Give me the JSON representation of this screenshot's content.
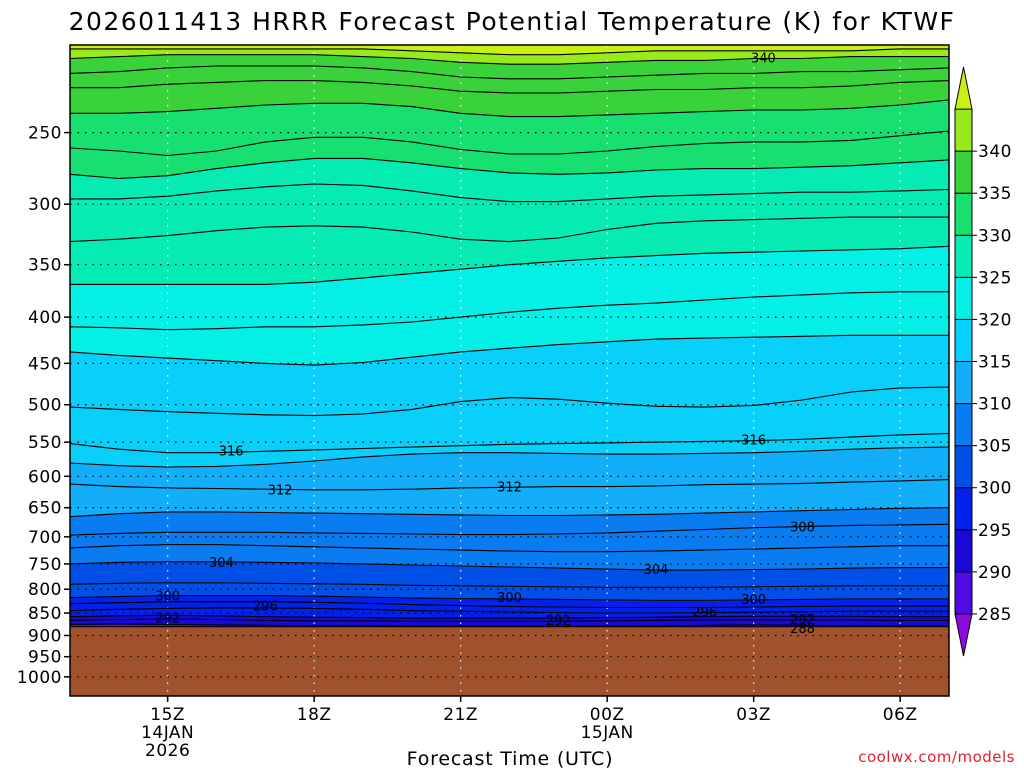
{
  "title": "2026011413 HRRR Forecast Potential Temperature (K) for KTWF",
  "credit": "coolwx.com/models",
  "chart_data": {
    "type": "heatmap",
    "title": "2026011413 HRRR Forecast Potential Temperature (K) for KTWF",
    "xlabel": "Forecast Time (UTC)",
    "ylabel": "",
    "x_range_hours_after_13Z": [
      0,
      18
    ],
    "x_ticks": [
      {
        "label": "15Z",
        "sub": [
          "14JAN",
          "2026"
        ],
        "hour": 2
      },
      {
        "label": "18Z",
        "sub": [],
        "hour": 5
      },
      {
        "label": "21Z",
        "sub": [],
        "hour": 8
      },
      {
        "label": "00Z",
        "sub": [
          "15JAN"
        ],
        "hour": 11
      },
      {
        "label": "03Z",
        "sub": [],
        "hour": 14
      },
      {
        "label": "06Z",
        "sub": [],
        "hour": 17
      }
    ],
    "y_ticks": [
      "250",
      "300",
      "350",
      "400",
      "450",
      "500",
      "550",
      "600",
      "650",
      "700",
      "750",
      "800",
      "850",
      "900",
      "950",
      "1000"
    ],
    "y_tick_values": [
      250,
      300,
      350,
      400,
      450,
      500,
      550,
      600,
      650,
      700,
      750,
      800,
      850,
      900,
      950,
      1000
    ],
    "y_range": [
      200,
      1050
    ],
    "y_scale": "log",
    "colorbar_levels": [
      "285",
      "290",
      "295",
      "300",
      "305",
      "310",
      "315",
      "320",
      "325",
      "330",
      "335",
      "340"
    ],
    "colorbar_values": [
      285,
      290,
      295,
      300,
      305,
      310,
      315,
      320,
      325,
      330,
      335,
      340
    ],
    "fill_colors": [
      "#8a0ae0",
      "#4f0ae6",
      "#1a08d8",
      "#0022ea",
      "#0050e8",
      "#0a7cf2",
      "#12aefa",
      "#08d0fa",
      "#04f0e6",
      "#06eab4",
      "#18e070",
      "#3ad23a",
      "#98ea1e",
      "#c8f012"
    ],
    "ground_color": "#a0522d",
    "ground_top_hpa": 880,
    "contour_interval_K": 2,
    "contour_labels": [
      {
        "text": "340",
        "hour": 14.2,
        "hpa": 207
      },
      {
        "text": "316",
        "hour": 3.3,
        "hpa": 563
      },
      {
        "text": "316",
        "hour": 14.0,
        "hpa": 548
      },
      {
        "text": "312",
        "hour": 4.3,
        "hpa": 622
      },
      {
        "text": "312",
        "hour": 9.0,
        "hpa": 617
      },
      {
        "text": "308",
        "hour": 15.0,
        "hpa": 684
      },
      {
        "text": "304",
        "hour": 3.1,
        "hpa": 748
      },
      {
        "text": "304",
        "hour": 12.0,
        "hpa": 762
      },
      {
        "text": "300",
        "hour": 2.0,
        "hpa": 815
      },
      {
        "text": "300",
        "hour": 9.0,
        "hpa": 818
      },
      {
        "text": "300",
        "hour": 14.0,
        "hpa": 822
      },
      {
        "text": "296",
        "hour": 4.0,
        "hpa": 836
      },
      {
        "text": "296",
        "hour": 13.0,
        "hpa": 849
      },
      {
        "text": "292",
        "hour": 2.0,
        "hpa": 862
      },
      {
        "text": "292",
        "hour": 10.0,
        "hpa": 867
      },
      {
        "text": "292",
        "hour": 15.0,
        "hpa": 865
      },
      {
        "text": "288",
        "hour": 15.0,
        "hpa": 885
      }
    ],
    "isentropes": [
      {
        "theta": 288,
        "p": [
          880,
          880,
          880,
          880,
          880,
          880,
          880,
          880,
          880,
          880,
          880,
          880,
          880,
          880,
          880,
          880,
          880,
          880,
          880
        ]
      },
      {
        "theta": 290,
        "p": [
          875,
          874,
          875,
          876,
          877,
          878,
          878,
          879,
          879,
          879,
          879,
          879,
          879,
          877,
          876,
          877,
          878,
          878,
          878
        ]
      },
      {
        "theta": 292,
        "p": [
          866,
          864,
          863,
          864,
          866,
          867,
          867,
          868,
          868,
          868,
          868,
          867,
          866,
          865,
          865,
          865,
          865,
          866,
          866
        ]
      },
      {
        "theta": 294,
        "p": [
          858,
          856,
          855,
          856,
          858,
          859,
          860,
          861,
          861,
          861,
          861,
          860,
          859,
          858,
          857,
          857,
          857,
          858,
          858
        ]
      },
      {
        "theta": 296,
        "p": [
          845,
          842,
          840,
          839,
          839,
          840,
          842,
          845,
          846,
          848,
          849,
          850,
          850,
          849,
          848,
          847,
          846,
          846,
          846
        ]
      },
      {
        "theta": 298,
        "p": [
          830,
          828,
          826,
          826,
          826,
          827,
          829,
          832,
          834,
          836,
          837,
          838,
          838,
          838,
          837,
          836,
          835,
          835,
          835
        ]
      },
      {
        "theta": 300,
        "p": [
          817,
          815,
          813,
          813,
          813,
          814,
          816,
          818,
          819,
          820,
          821,
          822,
          823,
          823,
          822,
          821,
          820,
          820,
          820
        ]
      },
      {
        "theta": 302,
        "p": [
          790,
          788,
          787,
          787,
          788,
          789,
          790,
          792,
          793,
          794,
          795,
          796,
          796,
          796,
          795,
          794,
          793,
          793,
          793
        ]
      },
      {
        "theta": 304,
        "p": [
          750,
          747,
          746,
          746,
          747,
          748,
          750,
          752,
          754,
          756,
          758,
          760,
          762,
          762,
          761,
          760,
          758,
          757,
          757
        ]
      },
      {
        "theta": 306,
        "p": [
          720,
          716,
          714,
          714,
          716,
          718,
          720,
          722,
          724,
          726,
          727,
          727,
          726,
          724,
          722,
          720,
          718,
          716,
          716
        ]
      },
      {
        "theta": 308,
        "p": [
          697,
          694,
          692,
          692,
          692,
          693,
          694,
          695,
          696,
          696,
          695,
          693,
          690,
          687,
          684,
          682,
          680,
          679,
          678
        ]
      },
      {
        "theta": 310,
        "p": [
          665,
          660,
          657,
          657,
          658,
          659,
          660,
          661,
          662,
          663,
          663,
          662,
          661,
          659,
          657,
          655,
          653,
          651,
          650
        ]
      },
      {
        "theta": 312,
        "p": [
          612,
          616,
          618,
          619,
          620,
          621,
          621,
          620,
          618,
          617,
          616,
          616,
          615,
          613,
          612,
          611,
          609,
          607,
          605
        ]
      },
      {
        "theta": 314,
        "p": [
          580,
          584,
          586,
          585,
          582,
          577,
          571,
          567,
          565,
          565,
          566,
          567,
          567,
          566,
          565,
          563,
          560,
          558,
          557
        ]
      },
      {
        "theta": 316,
        "p": [
          552,
          560,
          565,
          565,
          563,
          561,
          559,
          557,
          555,
          553,
          552,
          551,
          550,
          549,
          548,
          546,
          543,
          540,
          538
        ]
      },
      {
        "theta": 318,
        "p": [
          503,
          506,
          509,
          511,
          513,
          514,
          512,
          506,
          496,
          491,
          493,
          498,
          502,
          503,
          501,
          494,
          484,
          479,
          478
        ]
      },
      {
        "theta": 320,
        "p": [
          437,
          441,
          444,
          447,
          450,
          452,
          449,
          443,
          437,
          433,
          429,
          426,
          423,
          422,
          421,
          420,
          419,
          419,
          419
        ]
      },
      {
        "theta": 322,
        "p": [
          410,
          411,
          413,
          412,
          410,
          410,
          408,
          405,
          400,
          395,
          391,
          388,
          386,
          383,
          380,
          378,
          376,
          375,
          375
        ]
      },
      {
        "theta": 324,
        "p": [
          368,
          368,
          368,
          368,
          368,
          366,
          362,
          358,
          354,
          350,
          347,
          344,
          342,
          340,
          339,
          338,
          337,
          336,
          334
        ]
      },
      {
        "theta": 326,
        "p": [
          330,
          328,
          325,
          321,
          318,
          317,
          318,
          322,
          328,
          330,
          327,
          320,
          315,
          313,
          312,
          311,
          310,
          310,
          310
        ]
      },
      {
        "theta": 328,
        "p": [
          296,
          296,
          294,
          290,
          287,
          285,
          286,
          290,
          295,
          298,
          298,
          296,
          294,
          293,
          292,
          291,
          291,
          290,
          289
        ]
      },
      {
        "theta": 330,
        "p": [
          278,
          281,
          279,
          274,
          270,
          267,
          267,
          270,
          274,
          277,
          278,
          277,
          275,
          274,
          274,
          273,
          272,
          270,
          268
        ]
      },
      {
        "theta": 332,
        "p": [
          260,
          262,
          265,
          262,
          256,
          253,
          253,
          256,
          261,
          264,
          264,
          262,
          259,
          257,
          256,
          256,
          255,
          252,
          249
        ]
      },
      {
        "theta": 334,
        "p": [
          238,
          238,
          237,
          235,
          233,
          232,
          232,
          234,
          238,
          240,
          240,
          239,
          238,
          237,
          236,
          236,
          235,
          233,
          230
        ]
      },
      {
        "theta": 336,
        "p": [
          223,
          223,
          221,
          220,
          219,
          219,
          220,
          222,
          225,
          226,
          226,
          225,
          224,
          224,
          223,
          223,
          222,
          220,
          219
        ]
      },
      {
        "theta": 338,
        "p": [
          215,
          214,
          212,
          211,
          211,
          211,
          212,
          214,
          217,
          218,
          218,
          217,
          216,
          215,
          215,
          214,
          214,
          213,
          212
        ]
      },
      {
        "theta": 340,
        "p": [
          207,
          206,
          205,
          205,
          205,
          205,
          206,
          207,
          209,
          210,
          210,
          209,
          208,
          208,
          207,
          207,
          206,
          206,
          206
        ]
      },
      {
        "theta": 342,
        "p": [
          202,
          202,
          202,
          202,
          202,
          202,
          202,
          203,
          204,
          205,
          205,
          204,
          203,
          203,
          203,
          203,
          203,
          202,
          202
        ]
      }
    ]
  }
}
